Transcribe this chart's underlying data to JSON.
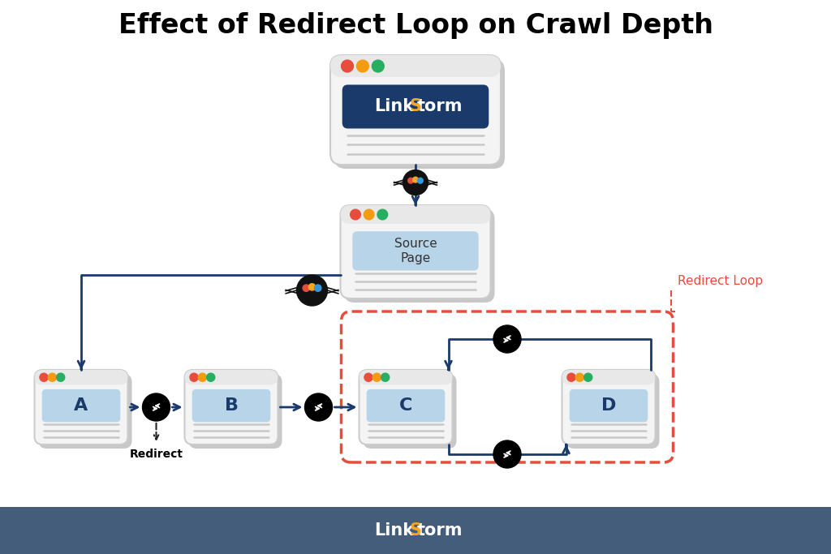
{
  "title": "Effect of Redirect Loop on Crawl Depth",
  "title_fontsize": 24,
  "title_fontweight": "bold",
  "bg_color": "#ffffff",
  "footer_color": "#445d7a",
  "traffic_light_colors": [
    "#e74c3c",
    "#f39c12",
    "#27ae60"
  ],
  "dark_blue_arrow": "#1a3a6b",
  "red_dashed": "#e74c3c",
  "source_page_label": "Source\nPage",
  "page_labels": [
    "A",
    "B",
    "C",
    "D"
  ],
  "redirect_label": "Redirect",
  "redirect_loop_label": "Redirect Loop",
  "linkstorm_bg": "#1a3a6b",
  "source_page_bg": "#b8d4e8",
  "page_content_bg": "#b8d4e8",
  "browser_frame_bg": "#e8e8e8",
  "browser_frame_edge": "#cccccc",
  "browser_body_bg": "#f4f4f4"
}
